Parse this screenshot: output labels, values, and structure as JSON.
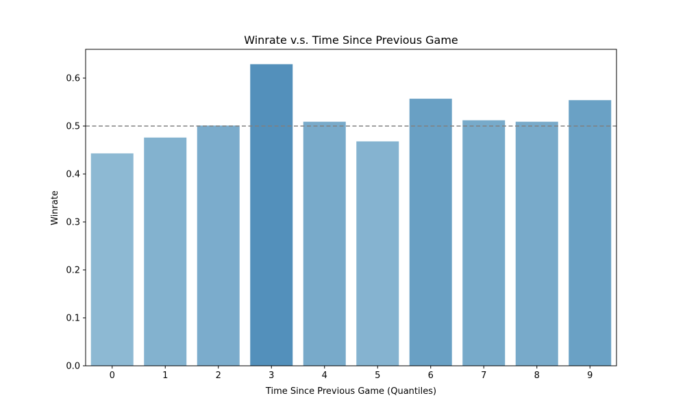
{
  "chart_data": {
    "type": "bar",
    "title": "Winrate v.s. Time Since Previous Game",
    "xlabel": "Time Since Previous Game (Quantiles)",
    "ylabel": "Winrate",
    "categories": [
      "0",
      "1",
      "2",
      "3",
      "4",
      "5",
      "6",
      "7",
      "8",
      "9"
    ],
    "values": [
      0.443,
      0.476,
      0.501,
      0.629,
      0.509,
      0.468,
      0.557,
      0.512,
      0.509,
      0.554
    ],
    "ylim": [
      0,
      0.66
    ],
    "yticks": [
      0.0,
      0.1,
      0.2,
      0.3,
      0.4,
      0.5,
      0.6
    ],
    "ytick_labels": [
      "0.0",
      "0.1",
      "0.2",
      "0.3",
      "0.4",
      "0.5",
      "0.6"
    ],
    "reference_line": {
      "value": 0.5,
      "style": "dashed",
      "color": "#808080"
    },
    "bar_color_scale": {
      "low": "#8db9d3",
      "high": "#5390bb"
    },
    "grid": false,
    "legend": "none"
  }
}
